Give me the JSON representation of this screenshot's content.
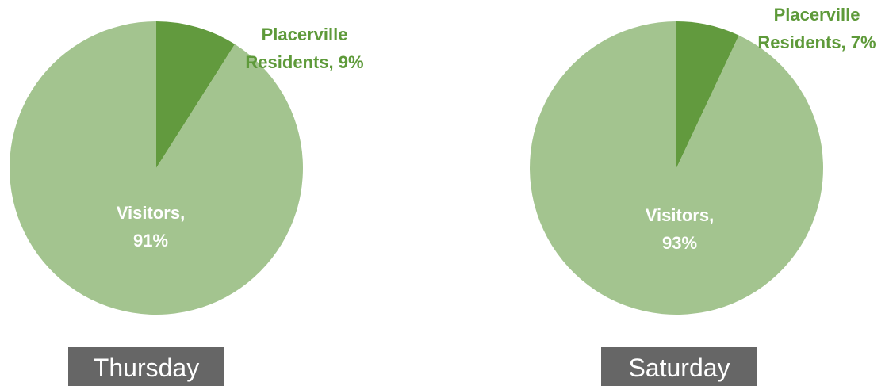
{
  "chart_data": [
    {
      "type": "pie",
      "title": "Thursday",
      "values": [
        9,
        91
      ],
      "value_labels": [
        "Placerville Residents, 9%",
        "Visitors, 91%"
      ],
      "colors": [
        "#629a3e",
        "#a3c48f"
      ]
    },
    {
      "type": "pie",
      "title": "Saturday",
      "values": [
        7,
        93
      ],
      "value_labels": [
        "Placerville Residents, 7%",
        "Visitors, 93%"
      ],
      "colors": [
        "#629a3e",
        "#a3c48f"
      ]
    }
  ]
}
